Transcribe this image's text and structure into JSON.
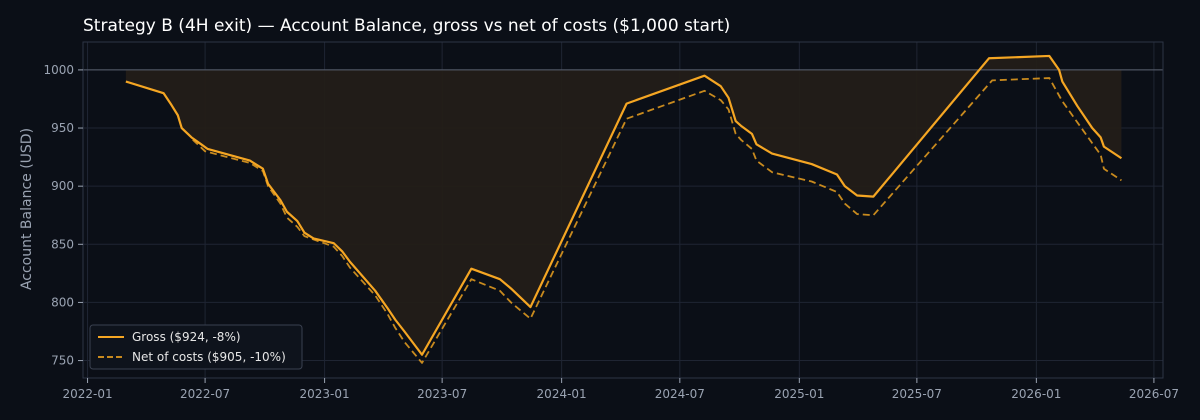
{
  "chart_data": {
    "type": "line",
    "title": "Strategy B (4H exit) — Account Balance, gross vs net of costs ($1,000 start)",
    "xlabel": "",
    "ylabel": "Account Balance (USD)",
    "xlim": [
      "2021-12-25",
      "2026-07-15"
    ],
    "ylim": [
      735,
      1024
    ],
    "x_ticks": [
      "2022-01",
      "2022-07",
      "2023-01",
      "2023-07",
      "2024-01",
      "2024-07",
      "2025-01",
      "2025-07",
      "2026-01",
      "2026-07"
    ],
    "y_ticks": [
      750,
      800,
      850,
      900,
      950,
      1000
    ],
    "reference_line": 1000,
    "grid": true,
    "legend_position": "bottom-left",
    "colors": {
      "gross": "#f5a623",
      "net": "#c88a1e",
      "fill": "#231d18",
      "background": "#0b0f17",
      "grid": "#1f2533"
    },
    "series": [
      {
        "name": "Gross ($924, -8%)",
        "style": "solid",
        "x": [
          "2022-03-01",
          "2022-04-28",
          "2022-05-10",
          "2022-05-20",
          "2022-05-26",
          "2022-06-10",
          "2022-06-25",
          "2022-07-05",
          "2022-09-08",
          "2022-09-28",
          "2022-10-06",
          "2022-10-25",
          "2022-11-04",
          "2022-11-20",
          "2022-12-01",
          "2022-12-15",
          "2023-01-15",
          "2023-01-28",
          "2023-02-09",
          "2023-03-20",
          "2023-04-08",
          "2023-04-20",
          "2023-05-04",
          "2023-05-31",
          "2023-08-15",
          "2023-09-28",
          "2023-10-15",
          "2023-11-14",
          "2024-04-10",
          "2024-08-08",
          "2024-09-02",
          "2024-09-14",
          "2024-09-25",
          "2024-10-03",
          "2024-10-20",
          "2024-10-27",
          "2024-11-20",
          "2025-01-20",
          "2025-02-28",
          "2025-03-12",
          "2025-03-31",
          "2025-04-25",
          "2025-10-20",
          "2026-01-21",
          "2026-02-05",
          "2026-02-10",
          "2026-03-05",
          "2026-03-28",
          "2026-04-10",
          "2026-04-15",
          "2026-05-12"
        ],
        "values": [
          990,
          980,
          970,
          961,
          950,
          942,
          936,
          932,
          922,
          915,
          902,
          888,
          878,
          870,
          860,
          855,
          851,
          844,
          835,
          810,
          795,
          785,
          775,
          755,
          829,
          820,
          812,
          796,
          971,
          995,
          986,
          976,
          956,
          952,
          945,
          936,
          928,
          919,
          910,
          900,
          892,
          891,
          1010,
          1012,
          1000,
          990,
          969,
          950,
          942,
          934,
          924
        ]
      },
      {
        "name": "Net of costs ($905, -10%)",
        "style": "dashed",
        "x": [
          "2022-06-12",
          "2022-07-01",
          "2022-09-08",
          "2022-09-28",
          "2022-10-06",
          "2022-10-25",
          "2022-11-04",
          "2022-11-20",
          "2022-12-01",
          "2023-01-15",
          "2023-01-28",
          "2023-02-09",
          "2023-03-20",
          "2023-04-08",
          "2023-04-20",
          "2023-05-04",
          "2023-05-31",
          "2023-08-15",
          "2023-09-28",
          "2023-10-15",
          "2023-11-14",
          "2024-04-10",
          "2024-08-08",
          "2024-09-02",
          "2024-09-14",
          "2024-09-25",
          "2024-10-03",
          "2024-10-20",
          "2024-10-27",
          "2024-11-20",
          "2025-01-20",
          "2025-02-28",
          "2025-03-12",
          "2025-03-31",
          "2025-04-25",
          "2025-10-25",
          "2026-01-21",
          "2026-02-10",
          "2026-03-05",
          "2026-03-28",
          "2026-04-10",
          "2026-04-15",
          "2026-05-12"
        ],
        "values": [
          940,
          930,
          920,
          913,
          900,
          885,
          873,
          865,
          857,
          848,
          840,
          830,
          806,
          790,
          778,
          766,
          748,
          820,
          810,
          800,
          786,
          958,
          982,
          974,
          966,
          945,
          940,
          932,
          922,
          912,
          904,
          895,
          885,
          876,
          875,
          991,
          993,
          973,
          955,
          937,
          927,
          915,
          905
        ]
      }
    ]
  }
}
